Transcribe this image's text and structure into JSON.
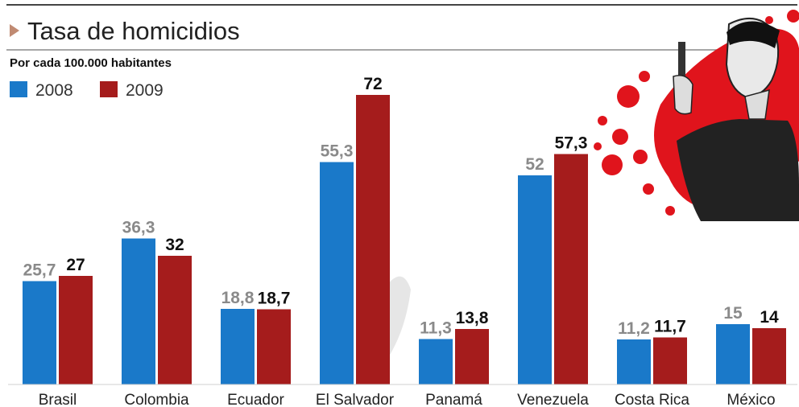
{
  "chart_data": {
    "type": "bar",
    "title": "Tasa de homicidios",
    "subtitle": "Por cada 100.000 habitantes",
    "categories": [
      "Brasil",
      "Colombia",
      "Ecuador",
      "El Salvador",
      "Panamá",
      "Venezuela",
      "Costa Rica",
      "México"
    ],
    "series": [
      {
        "name": "2008",
        "values": [
          25.7,
          36.3,
          18.8,
          55.3,
          11.3,
          52,
          11.2,
          15
        ],
        "labels": [
          "25,7",
          "36,3",
          "18,8",
          "55,3",
          "11,3",
          "52",
          "11,2",
          "15"
        ]
      },
      {
        "name": "2009",
        "values": [
          27,
          32,
          18.7,
          72,
          13.8,
          57.3,
          11.7,
          14
        ],
        "labels": [
          "27",
          "32",
          "18,7",
          "72",
          "13,8",
          "57,3",
          "11,7",
          "14"
        ]
      }
    ],
    "ylim": [
      0,
      80
    ],
    "grid": false,
    "legend": "top-left",
    "colors": {
      "2008": "#1a79c9",
      "2009": "#a51c1c"
    }
  }
}
